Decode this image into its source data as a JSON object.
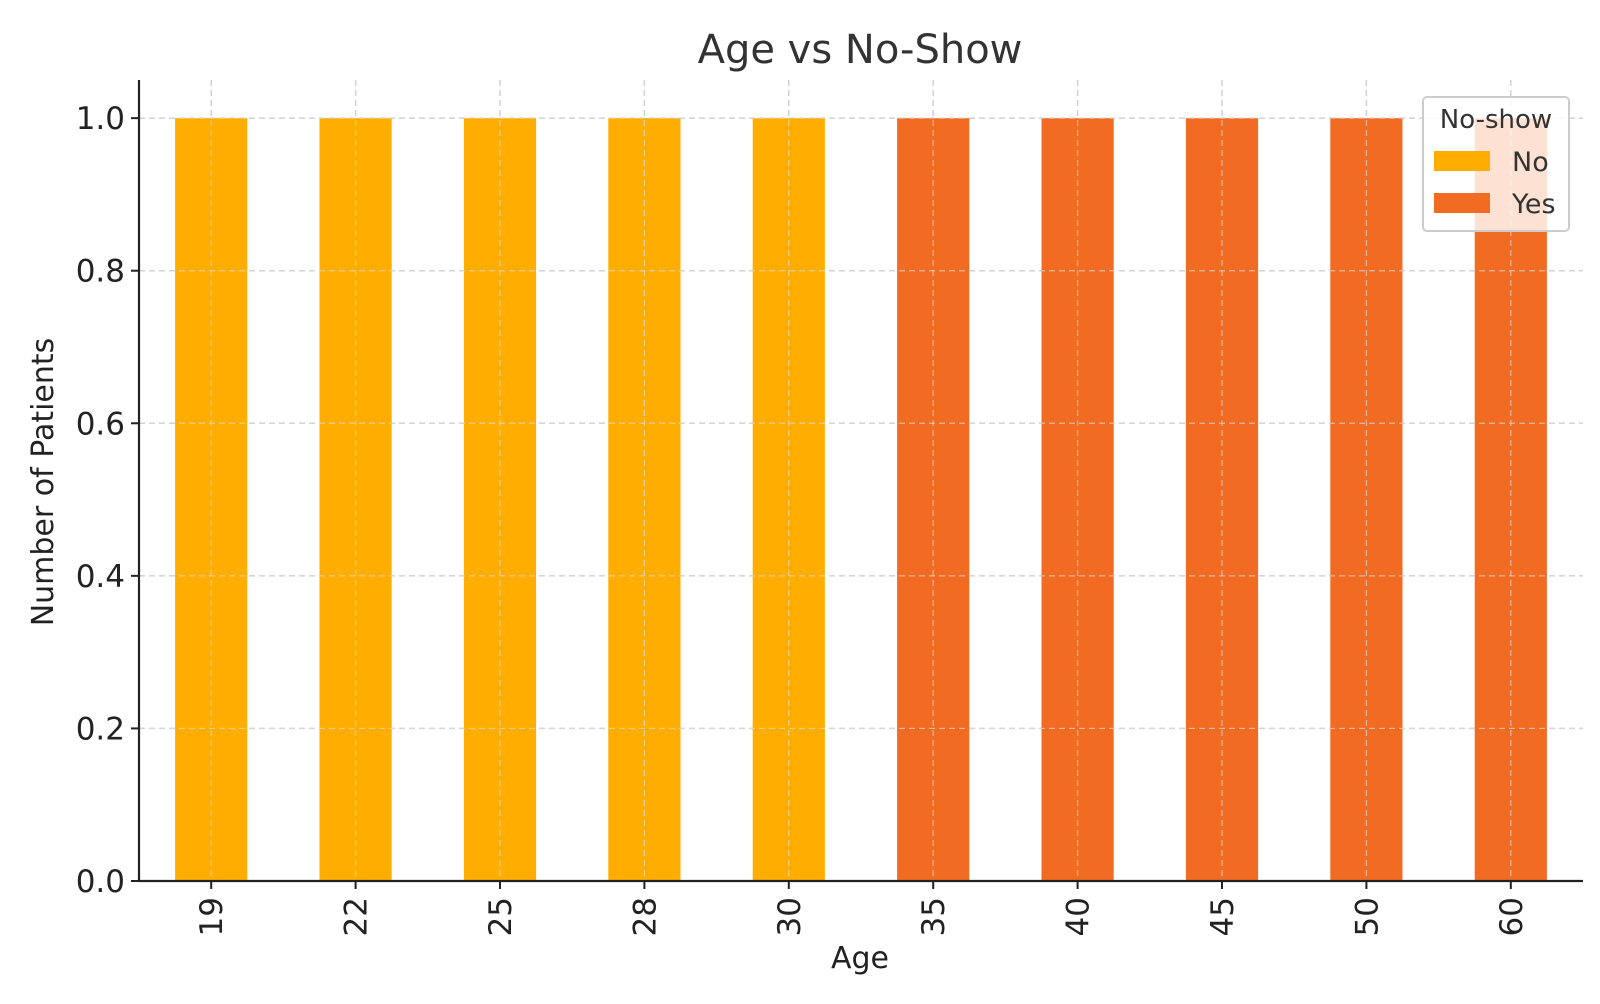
{
  "chart_data": {
    "type": "bar",
    "title": "Age vs No-Show",
    "xlabel": "Age",
    "ylabel": "Number of Patients",
    "categories": [
      "19",
      "22",
      "25",
      "28",
      "30",
      "35",
      "40",
      "45",
      "50",
      "60"
    ],
    "series": [
      {
        "name": "No",
        "color": "#FFAE00",
        "values": [
          1,
          1,
          1,
          1,
          1,
          0,
          0,
          0,
          0,
          0
        ]
      },
      {
        "name": "Yes",
        "color": "#F26B22",
        "values": [
          0,
          0,
          0,
          0,
          0,
          1,
          1,
          1,
          1,
          1
        ]
      }
    ],
    "stacked": true,
    "ylim": [
      0,
      1.05
    ],
    "yticks": [
      "0.0",
      "0.2",
      "0.4",
      "0.6",
      "0.8",
      "1.0"
    ],
    "grid": true,
    "legend": {
      "title": "No-show",
      "position": "top-right"
    }
  }
}
